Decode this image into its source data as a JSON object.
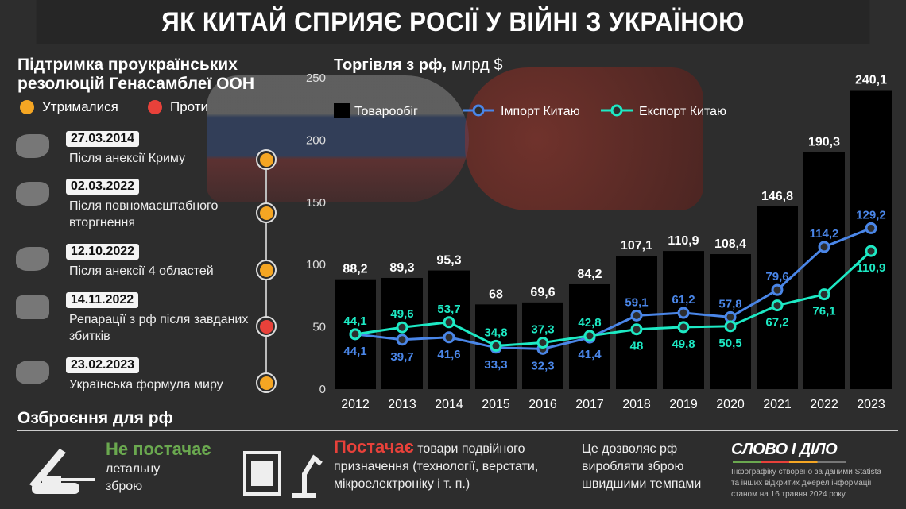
{
  "title": "ЯК КИТАЙ СПРИЯЄ РОСІЇ У ВІЙНІ З УКРАЇНОЮ",
  "un": {
    "heading_line1": "Підтримка проукраїнських",
    "heading_line2": "резолюцій Генасамблеї ООН",
    "legend": [
      {
        "label": "Утрималися",
        "color": "#f5a623"
      },
      {
        "label": "Проти",
        "color": "#e8413a"
      }
    ],
    "events": [
      {
        "date": "27.03.2014",
        "text": "Після анексії Криму",
        "vote": "abstained"
      },
      {
        "date": "02.03.2022",
        "text": "Після повномасштабного вторгнення",
        "vote": "abstained"
      },
      {
        "date": "12.10.2022",
        "text": "Після анексії 4 областей",
        "vote": "abstained"
      },
      {
        "date": "14.11.2022",
        "text": "Репарації з рф після завданих збитків",
        "vote": "against"
      },
      {
        "date": "23.02.2023",
        "text": "Українська формула миру",
        "vote": "abstained"
      }
    ]
  },
  "chart_data": {
    "type": "bar+line",
    "title": "Торгівля з рф,",
    "unit": "млрд $",
    "categories": [
      "2012",
      "2013",
      "2014",
      "2015",
      "2016",
      "2017",
      "2018",
      "2019",
      "2020",
      "2021",
      "2022",
      "2023"
    ],
    "ylim": [
      0,
      250
    ],
    "yticks": [
      "0",
      "50",
      "100",
      "150",
      "200",
      "250"
    ],
    "series": [
      {
        "name": "Товарообіг",
        "type": "bar",
        "color": "#000000",
        "values": [
          88.2,
          89.3,
          95.3,
          68,
          69.6,
          84.2,
          107.1,
          110.9,
          108.4,
          146.8,
          190.3,
          240.1
        ],
        "labels": [
          "88,2",
          "89,3",
          "95,3",
          "68",
          "69,6",
          "84,2",
          "107,1",
          "110,9",
          "108,4",
          "146,8",
          "190,3",
          "240,1"
        ]
      },
      {
        "name": "Імпорт Китаю",
        "type": "line",
        "color": "#4a86e8",
        "values": [
          44.1,
          39.7,
          41.6,
          33.3,
          32.3,
          41.4,
          59.1,
          61.2,
          57.8,
          79.6,
          114.2,
          129.2
        ],
        "labels": [
          "44,1",
          "39,7",
          "41,6",
          "33,3",
          "32,3",
          "41,4",
          "59,1",
          "61,2",
          "57,8",
          "79,6",
          "114,2",
          "129,2"
        ]
      },
      {
        "name": "Експорт Китаю",
        "type": "line",
        "color": "#1de9c4",
        "values": [
          44.1,
          49.6,
          53.7,
          34.8,
          37.3,
          42.8,
          48,
          49.8,
          50.5,
          67.2,
          76.1,
          110.9
        ],
        "labels": [
          "44,1",
          "49,6",
          "53,7",
          "34,8",
          "37,3",
          "42,8",
          "48",
          "49,8",
          "50,5",
          "67,2",
          "76,1",
          "110,9"
        ]
      }
    ]
  },
  "arms": {
    "heading": "Озброєння для рф",
    "no_supply": "Не постачає",
    "no_supply_rest_1": "летальну",
    "no_supply_rest_2": "зброю",
    "supply": "Постачає",
    "supply_rest_1": "товари подвійного",
    "supply_rest_2": "призначення (технології, верстати,",
    "supply_rest_3": "мікроелектроніку і т. п.)",
    "effect_1": "Це дозволяє рф",
    "effect_2": "виробляти зброю",
    "effect_3": "швидшими темпами"
  },
  "footer": {
    "logo": "СЛОВО І ДІЛО",
    "note_1": "Інфографіку створено за даними Statista",
    "note_2": "та інших відкритих джерел інформації",
    "note_3": "станом на 16 травня 2024 року"
  }
}
